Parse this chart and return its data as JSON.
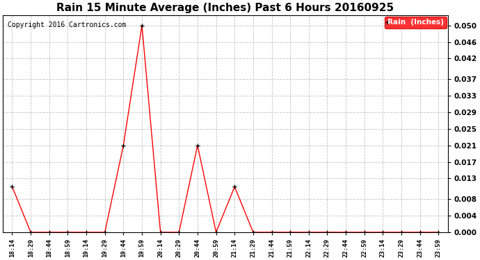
{
  "title": "Rain 15 Minute Average (Inches) Past 6 Hours 20160925",
  "copyright": "Copyright 2016 Cartronics.com",
  "legend_label": "Rain  (Inches)",
  "x_labels": [
    "18:14",
    "18:29",
    "18:44",
    "18:59",
    "19:14",
    "19:29",
    "19:44",
    "19:59",
    "20:14",
    "20:29",
    "20:44",
    "20:59",
    "21:14",
    "21:29",
    "21:44",
    "21:59",
    "22:14",
    "22:29",
    "22:44",
    "22:59",
    "23:14",
    "23:29",
    "23:44",
    "23:59"
  ],
  "y_values": [
    0.011,
    0.0,
    0.0,
    0.0,
    0.0,
    0.0,
    0.021,
    0.05,
    0.0,
    0.0,
    0.021,
    0.0,
    0.011,
    0.0,
    0.0,
    0.0,
    0.0,
    0.0,
    0.0,
    0.0,
    0.0,
    0.0,
    0.0,
    0.0
  ],
  "yticks": [
    0.0,
    0.004,
    0.008,
    0.013,
    0.017,
    0.021,
    0.025,
    0.029,
    0.033,
    0.037,
    0.042,
    0.046,
    0.05
  ],
  "line_color": "#ff0000",
  "marker_color": "#000000",
  "background_color": "#ffffff",
  "grid_color": "#c0c0c0",
  "title_fontsize": 11,
  "copyright_fontsize": 7,
  "legend_bg_color": "#ff0000",
  "legend_text_color": "#ffffff",
  "ylim": [
    0.0,
    0.0525
  ]
}
